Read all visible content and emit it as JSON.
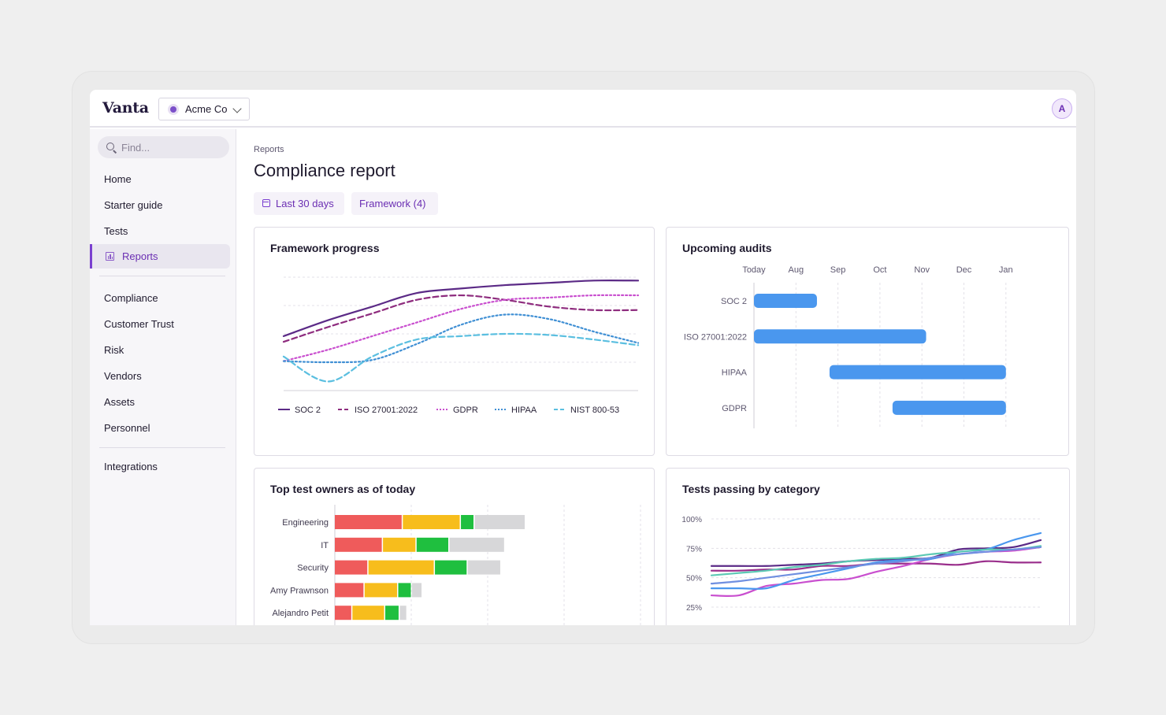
{
  "app": {
    "logo": "Vanta",
    "org_name": "Acme Co",
    "avatar_initial": "A"
  },
  "sidebar": {
    "search_placeholder": "Find...",
    "items": [
      {
        "label": "Home"
      },
      {
        "label": "Starter guide"
      },
      {
        "label": "Tests"
      },
      {
        "label": "Reports",
        "active": true,
        "icon": "chart-icon"
      },
      {
        "label": "Compliance"
      },
      {
        "label": "Customer Trust"
      },
      {
        "label": "Risk"
      },
      {
        "label": "Vendors"
      },
      {
        "label": "Assets"
      },
      {
        "label": "Personnel"
      },
      {
        "label": "Integrations"
      }
    ]
  },
  "page": {
    "breadcrumb": "Reports",
    "title": "Compliance report",
    "filters": {
      "date_range": "Last 30 days",
      "framework": "Framework (4)"
    }
  },
  "colors": {
    "accent": "#6b2fb3",
    "owner_colors": {
      "failing": "#ef5b5b",
      "needs_attention": "#f7bd1c",
      "passing": "#1fbf3f",
      "other": "#d7d7d9"
    }
  },
  "chart_data": [
    {
      "type": "line",
      "title": "Framework progress",
      "x": [
        0,
        1,
        2,
        3,
        4,
        5,
        6,
        7,
        8
      ],
      "grid": "horizontal-dashed",
      "legend": "bottom",
      "series": [
        {
          "name": "SOC 2",
          "style": "solid",
          "color": "#5b2a86",
          "values": [
            0.48,
            0.62,
            0.74,
            0.86,
            0.9,
            0.93,
            0.95,
            0.97,
            0.97
          ]
        },
        {
          "name": "ISO 27001:2022",
          "style": "dashed",
          "color": "#8e2c7e",
          "values": [
            0.43,
            0.56,
            0.68,
            0.8,
            0.84,
            0.8,
            0.74,
            0.71,
            0.71
          ]
        },
        {
          "name": "GDPR",
          "style": "dotted",
          "color": "#c94fcf",
          "values": [
            0.26,
            0.36,
            0.48,
            0.6,
            0.72,
            0.8,
            0.82,
            0.84,
            0.84
          ]
        },
        {
          "name": "HIPAA",
          "style": "dotted",
          "color": "#3f8fd4",
          "values": [
            0.26,
            0.25,
            0.27,
            0.41,
            0.58,
            0.67,
            0.63,
            0.52,
            0.42
          ]
        },
        {
          "name": "NIST 800-53",
          "style": "dashed",
          "color": "#5bbfe0",
          "values": [
            0.3,
            0.08,
            0.3,
            0.45,
            0.48,
            0.5,
            0.49,
            0.45,
            0.4
          ]
        }
      ]
    },
    {
      "type": "bar",
      "orientation": "horizontal",
      "title": "Upcoming audits",
      "x_ticks": [
        "Today",
        "Aug",
        "Sep",
        "Oct",
        "Nov",
        "Dec",
        "Jan"
      ],
      "categories": [
        "SOC 2",
        "ISO 27001:2022",
        "HIPAA",
        "GDPR"
      ],
      "ranges": [
        [
          0.0,
          1.5
        ],
        [
          0.0,
          4.1
        ],
        [
          1.8,
          6.0
        ],
        [
          3.3,
          6.0
        ]
      ],
      "color": "#4a97ee"
    },
    {
      "type": "bar",
      "orientation": "horizontal",
      "stacked": true,
      "title": "Top test owners as of today",
      "categories": [
        "Engineering",
        "IT",
        "Security",
        "Amy Prawnson",
        "Alejandro Petit"
      ],
      "series": [
        {
          "key": "failing",
          "color": "#ef5b5b",
          "values": [
            89,
            63,
            44,
            39,
            23
          ]
        },
        {
          "key": "needs_attention",
          "color": "#f7bd1c",
          "values": [
            76,
            44,
            87,
            44,
            43
          ]
        },
        {
          "key": "passing",
          "color": "#1fbf3f",
          "values": [
            18,
            43,
            43,
            18,
            19
          ]
        },
        {
          "key": "other",
          "color": "#d7d7d9",
          "values": [
            67,
            73,
            44,
            14,
            10
          ]
        }
      ],
      "xlim": [
        0,
        400
      ]
    },
    {
      "type": "line",
      "title": "Tests passing by category",
      "y_ticks": [
        "100%",
        "75%",
        "50%",
        "25%"
      ],
      "ylim": [
        25,
        100
      ],
      "x": [
        0,
        1,
        2,
        3,
        4,
        5,
        6,
        7,
        8,
        9,
        10,
        11,
        12
      ],
      "series": [
        {
          "color": "#5b2a86",
          "values": [
            60,
            60,
            60,
            61,
            62,
            64,
            65,
            66,
            67,
            74,
            75,
            76,
            82
          ]
        },
        {
          "color": "#9a2f8c",
          "values": [
            56,
            56,
            57,
            57,
            60,
            60,
            62,
            62,
            62,
            61,
            64,
            63,
            63
          ]
        },
        {
          "color": "#c94fcf",
          "values": [
            35,
            35,
            43,
            45,
            48,
            49,
            55,
            60,
            66,
            70,
            72,
            73,
            76
          ]
        },
        {
          "color": "#4a97ee",
          "values": [
            41,
            41,
            41,
            48,
            53,
            58,
            63,
            65,
            66,
            72,
            74,
            82,
            88
          ]
        },
        {
          "color": "#5cc9b4",
          "values": [
            52,
            54,
            56,
            59,
            61,
            64,
            66,
            67,
            70,
            72,
            74,
            74,
            77
          ]
        },
        {
          "color": "#6f8fe0",
          "values": [
            45,
            47,
            50,
            53,
            56,
            59,
            62,
            64,
            67,
            70,
            72,
            74,
            76
          ]
        }
      ]
    }
  ]
}
